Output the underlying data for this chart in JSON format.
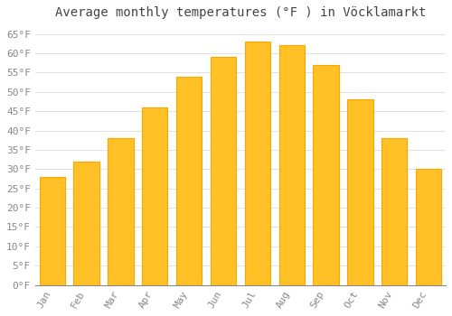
{
  "title": "Average monthly temperatures (°F ) in Vöcklamarkt",
  "months": [
    "Jan",
    "Feb",
    "Mar",
    "Apr",
    "May",
    "Jun",
    "Jul",
    "Aug",
    "Sep",
    "Oct",
    "Nov",
    "Dec"
  ],
  "values": [
    28,
    32,
    38,
    46,
    54,
    59,
    63,
    62,
    57,
    48,
    38,
    30
  ],
  "bar_color": "#FFC125",
  "bar_edge_color": "#FFA500",
  "background_color": "#FFFFFF",
  "grid_color": "#DDDDDD",
  "ylabel_ticks": [
    0,
    5,
    10,
    15,
    20,
    25,
    30,
    35,
    40,
    45,
    50,
    55,
    60,
    65
  ],
  "ylim": [
    0,
    67
  ],
  "title_fontsize": 10,
  "tick_fontsize": 8,
  "tick_label_color": "#888888",
  "title_color": "#444444"
}
